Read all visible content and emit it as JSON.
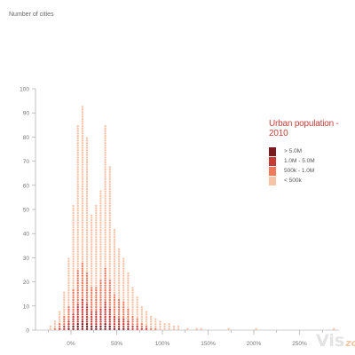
{
  "chart_data": {
    "type": "dot-histogram",
    "title": "",
    "ylabel": "Number of cities",
    "xlabel": "",
    "ylim": [
      0,
      100
    ],
    "xlim": [
      -30,
      300
    ],
    "y_ticks": [
      0,
      10,
      20,
      30,
      40,
      50,
      60,
      70,
      80,
      90,
      100
    ],
    "x_ticks": [
      {
        "value": 0,
        "label": "0%"
      },
      {
        "value": 50,
        "label": "50%"
      },
      {
        "value": 100,
        "label": "100%"
      },
      {
        "value": 150,
        "label": "150%"
      },
      {
        "value": 200,
        "label": "200%"
      },
      {
        "value": 250,
        "label": "250%"
      }
    ],
    "legend": {
      "title": "Urban population - 2010",
      "position": "right",
      "items": [
        {
          "label": "> 5.0M",
          "color": "#7b1a1e"
        },
        {
          "label": "1.0M - 5.0M",
          "color": "#c93a37"
        },
        {
          "label": "500k - 1.0M",
          "color": "#ee7a5e"
        },
        {
          "label": "< 500k",
          "color": "#f9c3a8"
        }
      ]
    },
    "bin_width": 5,
    "bins": [
      {
        "x": -25,
        "total": 2,
        "xl": 0,
        "l": 0,
        "m": 0
      },
      {
        "x": -20,
        "total": 4,
        "xl": 0,
        "l": 0,
        "m": 1
      },
      {
        "x": -15,
        "total": 8,
        "xl": 0,
        "l": 1,
        "m": 2
      },
      {
        "x": -10,
        "total": 16,
        "xl": 0,
        "l": 2,
        "m": 4
      },
      {
        "x": -5,
        "total": 30,
        "xl": 1,
        "l": 3,
        "m": 6
      },
      {
        "x": 0,
        "total": 52,
        "xl": 2,
        "l": 5,
        "m": 10
      },
      {
        "x": 5,
        "total": 85,
        "xl": 3,
        "l": 8,
        "m": 14
      },
      {
        "x": 10,
        "total": 93,
        "xl": 4,
        "l": 9,
        "m": 15
      },
      {
        "x": 15,
        "total": 80,
        "xl": 3,
        "l": 8,
        "m": 13
      },
      {
        "x": 20,
        "total": 48,
        "xl": 2,
        "l": 6,
        "m": 10
      },
      {
        "x": 25,
        "total": 52,
        "xl": 2,
        "l": 6,
        "m": 10
      },
      {
        "x": 30,
        "total": 58,
        "xl": 2,
        "l": 7,
        "m": 12
      },
      {
        "x": 35,
        "total": 85,
        "xl": 3,
        "l": 9,
        "m": 14
      },
      {
        "x": 40,
        "total": 68,
        "xl": 2,
        "l": 7,
        "m": 12
      },
      {
        "x": 45,
        "total": 42,
        "xl": 1,
        "l": 5,
        "m": 9
      },
      {
        "x": 50,
        "total": 34,
        "xl": 1,
        "l": 4,
        "m": 8
      },
      {
        "x": 55,
        "total": 30,
        "xl": 1,
        "l": 4,
        "m": 7
      },
      {
        "x": 60,
        "total": 24,
        "xl": 1,
        "l": 3,
        "m": 5
      },
      {
        "x": 65,
        "total": 18,
        "xl": 0,
        "l": 2,
        "m": 4
      },
      {
        "x": 70,
        "total": 14,
        "xl": 0,
        "l": 2,
        "m": 3
      },
      {
        "x": 75,
        "total": 10,
        "xl": 0,
        "l": 1,
        "m": 2
      },
      {
        "x": 80,
        "total": 8,
        "xl": 0,
        "l": 1,
        "m": 1
      },
      {
        "x": 85,
        "total": 6,
        "xl": 0,
        "l": 0,
        "m": 1
      },
      {
        "x": 90,
        "total": 5,
        "xl": 0,
        "l": 0,
        "m": 1
      },
      {
        "x": 95,
        "total": 4,
        "xl": 0,
        "l": 0,
        "m": 0
      },
      {
        "x": 100,
        "total": 3,
        "xl": 0,
        "l": 0,
        "m": 0
      },
      {
        "x": 105,
        "total": 3,
        "xl": 0,
        "l": 0,
        "m": 0
      },
      {
        "x": 110,
        "total": 2,
        "xl": 0,
        "l": 0,
        "m": 0
      },
      {
        "x": 115,
        "total": 2,
        "xl": 0,
        "l": 0,
        "m": 0
      },
      {
        "x": 125,
        "total": 1,
        "xl": 0,
        "l": 0,
        "m": 0
      },
      {
        "x": 135,
        "total": 1,
        "xl": 0,
        "l": 0,
        "m": 0
      },
      {
        "x": 140,
        "total": 1,
        "xl": 0,
        "l": 0,
        "m": 0
      },
      {
        "x": 170,
        "total": 1,
        "xl": 0,
        "l": 0,
        "m": 0
      },
      {
        "x": 200,
        "total": 1,
        "xl": 0,
        "l": 0,
        "m": 0
      },
      {
        "x": 285,
        "total": 1,
        "xl": 0,
        "l": 0,
        "m": 0
      }
    ]
  },
  "watermark": {
    "vis": "Vis",
    "zone": "zone"
  },
  "colors": {
    "axis": "#999999",
    "tick_label": "#777777"
  }
}
